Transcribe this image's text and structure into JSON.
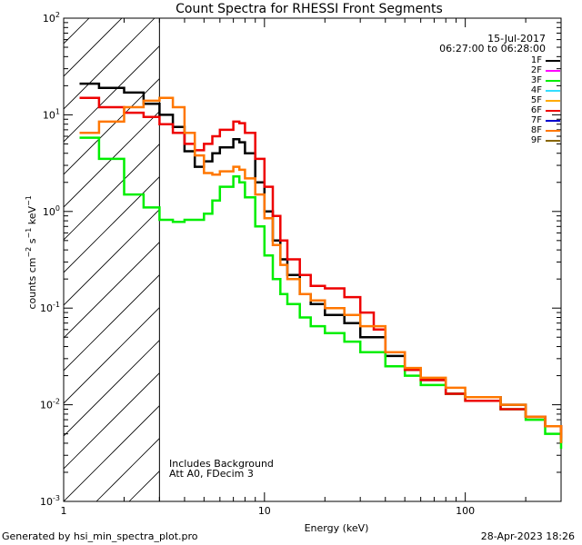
{
  "chart_data": {
    "type": "line",
    "title": "Count Spectra for RHESSI Front Segments",
    "xlabel": "Energy (keV)",
    "ylabel": "counts cm^-2 s^-1 keV^-1",
    "xscale": "log",
    "yscale": "log",
    "xlim": [
      1,
      300
    ],
    "ylim": [
      0.001,
      100
    ],
    "x_ticks": [
      "1",
      "10",
      "100"
    ],
    "y_ticks": [
      "10^-3",
      "10^-2",
      "10^-1",
      "10^0",
      "10^1",
      "10^2"
    ],
    "date": "15-Jul-2017",
    "time_range": "06:27:00 to 06:28:00",
    "annotation_1": "Includes Background",
    "annotation_2": "Att A0, FDecim 3",
    "hatch_region_max_energy_keV": 3,
    "legend_position": "top-right",
    "legend": [
      {
        "label": "1F",
        "color": "#000000"
      },
      {
        "label": "2F",
        "color": "#ff00ff"
      },
      {
        "label": "3F",
        "color": "#00ee00"
      },
      {
        "label": "4F",
        "color": "#33ddff"
      },
      {
        "label": "5F",
        "color": "#ffaa00"
      },
      {
        "label": "6F",
        "color": "#ee0000"
      },
      {
        "label": "7F",
        "color": "#0000cc"
      },
      {
        "label": "8F",
        "color": "#ff7700"
      },
      {
        "label": "9F",
        "color": "#886600"
      }
    ],
    "series": [
      {
        "name": "1F",
        "color": "#000000",
        "points": [
          [
            1.2,
            21
          ],
          [
            1.5,
            19
          ],
          [
            2.0,
            17
          ],
          [
            2.5,
            13
          ],
          [
            3.0,
            10
          ],
          [
            3.5,
            7.5
          ],
          [
            4.0,
            4.2
          ],
          [
            4.5,
            2.9
          ],
          [
            5.0,
            3.3
          ],
          [
            5.5,
            4.0
          ],
          [
            6.0,
            4.6
          ],
          [
            7.0,
            5.6
          ],
          [
            7.5,
            5.2
          ],
          [
            8.0,
            4.0
          ],
          [
            9.0,
            2.0
          ],
          [
            10.0,
            1.0
          ],
          [
            11.0,
            0.5
          ],
          [
            12.0,
            0.32
          ],
          [
            13.0,
            0.22
          ],
          [
            15.0,
            0.14
          ],
          [
            17.0,
            0.11
          ],
          [
            20.0,
            0.085
          ],
          [
            25.0,
            0.07
          ],
          [
            30.0,
            0.05
          ],
          [
            40.0,
            0.032
          ],
          [
            50.0,
            0.023
          ],
          [
            60.0,
            0.018
          ],
          [
            80.0,
            0.013
          ],
          [
            100.0,
            0.012
          ],
          [
            150.0,
            0.01
          ],
          [
            200.0,
            0.0075
          ],
          [
            250.0,
            0.006
          ],
          [
            300.0,
            0.004
          ]
        ]
      },
      {
        "name": "3F",
        "color": "#00ee00",
        "points": [
          [
            1.2,
            5.8
          ],
          [
            1.5,
            3.5
          ],
          [
            2.0,
            1.5
          ],
          [
            2.5,
            1.1
          ],
          [
            3.0,
            0.82
          ],
          [
            3.5,
            0.78
          ],
          [
            4.0,
            0.82
          ],
          [
            5.0,
            0.95
          ],
          [
            5.5,
            1.3
          ],
          [
            6.0,
            1.8
          ],
          [
            7.0,
            2.3
          ],
          [
            7.5,
            2.0
          ],
          [
            8.0,
            1.4
          ],
          [
            9.0,
            0.7
          ],
          [
            10.0,
            0.35
          ],
          [
            11.0,
            0.2
          ],
          [
            12.0,
            0.14
          ],
          [
            13.0,
            0.11
          ],
          [
            15.0,
            0.08
          ],
          [
            17.0,
            0.065
          ],
          [
            20.0,
            0.055
          ],
          [
            25.0,
            0.045
          ],
          [
            30.0,
            0.035
          ],
          [
            40.0,
            0.025
          ],
          [
            50.0,
            0.02
          ],
          [
            60.0,
            0.016
          ],
          [
            80.0,
            0.013
          ],
          [
            100.0,
            0.011
          ],
          [
            150.0,
            0.009
          ],
          [
            200.0,
            0.007
          ],
          [
            250.0,
            0.005
          ],
          [
            300.0,
            0.0035
          ]
        ]
      },
      {
        "name": "6F",
        "color": "#ee0000",
        "points": [
          [
            1.2,
            15
          ],
          [
            1.5,
            12
          ],
          [
            2.0,
            10.5
          ],
          [
            2.5,
            9.5
          ],
          [
            3.0,
            8.0
          ],
          [
            3.5,
            6.5
          ],
          [
            4.0,
            5.0
          ],
          [
            4.5,
            4.3
          ],
          [
            5.0,
            5.0
          ],
          [
            5.5,
            6.0
          ],
          [
            6.0,
            7.0
          ],
          [
            7.0,
            8.5
          ],
          [
            7.5,
            8.2
          ],
          [
            8.0,
            6.5
          ],
          [
            9.0,
            3.5
          ],
          [
            10.0,
            1.8
          ],
          [
            11.0,
            0.9
          ],
          [
            12.0,
            0.5
          ],
          [
            13.0,
            0.32
          ],
          [
            15.0,
            0.22
          ],
          [
            17.0,
            0.17
          ],
          [
            20.0,
            0.16
          ],
          [
            25.0,
            0.13
          ],
          [
            30.0,
            0.09
          ],
          [
            35.0,
            0.06
          ],
          [
            40.0,
            0.035
          ],
          [
            50.0,
            0.023
          ],
          [
            60.0,
            0.018
          ],
          [
            80.0,
            0.013
          ],
          [
            100.0,
            0.011
          ],
          [
            150.0,
            0.009
          ],
          [
            200.0,
            0.0075
          ],
          [
            250.0,
            0.006
          ],
          [
            300.0,
            0.0045
          ]
        ]
      },
      {
        "name": "8F",
        "color": "#ff7700",
        "points": [
          [
            1.2,
            6.5
          ],
          [
            1.5,
            8.5
          ],
          [
            2.0,
            12
          ],
          [
            2.5,
            14
          ],
          [
            3.0,
            15
          ],
          [
            3.5,
            12
          ],
          [
            4.0,
            6.5
          ],
          [
            4.5,
            3.8
          ],
          [
            5.0,
            2.5
          ],
          [
            5.5,
            2.4
          ],
          [
            6.0,
            2.6
          ],
          [
            7.0,
            2.9
          ],
          [
            7.5,
            2.7
          ],
          [
            8.0,
            2.2
          ],
          [
            9.0,
            1.5
          ],
          [
            10.0,
            0.85
          ],
          [
            11.0,
            0.45
          ],
          [
            12.0,
            0.28
          ],
          [
            13.0,
            0.2
          ],
          [
            15.0,
            0.14
          ],
          [
            17.0,
            0.12
          ],
          [
            20.0,
            0.1
          ],
          [
            25.0,
            0.085
          ],
          [
            30.0,
            0.065
          ],
          [
            40.0,
            0.035
          ],
          [
            50.0,
            0.024
          ],
          [
            60.0,
            0.019
          ],
          [
            80.0,
            0.015
          ],
          [
            100.0,
            0.012
          ],
          [
            150.0,
            0.01
          ],
          [
            200.0,
            0.0075
          ],
          [
            250.0,
            0.006
          ],
          [
            300.0,
            0.004
          ]
        ]
      }
    ]
  },
  "footer": {
    "left": "Generated by hsi_min_spectra_plot.pro",
    "right": "28-Apr-2023 18:26"
  }
}
